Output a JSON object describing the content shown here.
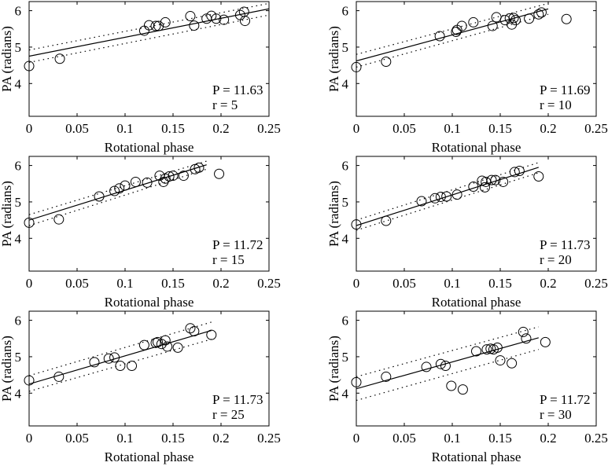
{
  "figure": {
    "background": "#ffffff",
    "ink": "#000000"
  },
  "chart_data": [
    {
      "type": "scatter",
      "xlabel": "Rotational phase",
      "ylabel": "PA (radians)",
      "xlim": [
        0,
        0.25
      ],
      "ylim": [
        3.1,
        6.25
      ],
      "xticks": [
        "0",
        "0.05",
        "0.1",
        "0.15",
        "0.2",
        "0.25"
      ],
      "yticks": [
        "4",
        "5",
        "6"
      ],
      "annotations": [
        "P = 11.63",
        "r = 5"
      ],
      "points": {
        "x": [
          0,
          0.032,
          0.12,
          0.125,
          0.132,
          0.135,
          0.142,
          0.168,
          0.172,
          0.185,
          0.19,
          0.195,
          0.203,
          0.22,
          0.224,
          0.225
        ],
        "y": [
          4.48,
          4.68,
          5.45,
          5.6,
          5.58,
          5.58,
          5.68,
          5.85,
          5.59,
          5.78,
          5.86,
          5.78,
          5.75,
          5.88,
          5.97,
          5.72
        ]
      },
      "fit_line": {
        "x": [
          0,
          0.25
        ],
        "y": [
          4.75,
          6.05
        ]
      },
      "confidence_lines": [
        {
          "x": [
            0,
            0.25
          ],
          "y": [
            4.92,
            6.2
          ]
        },
        {
          "x": [
            0,
            0.25
          ],
          "y": [
            4.58,
            5.88
          ]
        }
      ],
      "grid": false,
      "legend": "none"
    },
    {
      "type": "scatter",
      "xlabel": "Rotational phase",
      "ylabel": "PA (radians)",
      "xlim": [
        0,
        0.25
      ],
      "ylim": [
        3.1,
        6.25
      ],
      "xticks": [
        "0",
        "0.05",
        "0.1",
        "0.15",
        "0.2",
        "0.25"
      ],
      "yticks": [
        "4",
        "5",
        "6"
      ],
      "annotations": [
        "P = 11.69",
        "r = 10"
      ],
      "points": {
        "x": [
          0,
          0.031,
          0.087,
          0.104,
          0.105,
          0.11,
          0.122,
          0.142,
          0.146,
          0.155,
          0.16,
          0.162,
          0.164,
          0.166,
          0.18,
          0.19,
          0.193,
          0.219
        ],
        "y": [
          4.45,
          4.6,
          5.3,
          5.42,
          5.47,
          5.58,
          5.68,
          5.58,
          5.82,
          5.74,
          5.79,
          5.62,
          5.8,
          5.74,
          5.78,
          5.9,
          5.95,
          5.77
        ]
      },
      "fit_line": {
        "x": [
          0,
          0.2
        ],
        "y": [
          4.62,
          6.05
        ]
      },
      "confidence_lines": [
        {
          "x": [
            0,
            0.2
          ],
          "y": [
            4.8,
            6.2
          ]
        },
        {
          "x": [
            0,
            0.2
          ],
          "y": [
            4.45,
            5.9
          ]
        }
      ],
      "grid": false,
      "legend": "none"
    },
    {
      "type": "scatter",
      "xlabel": "Rotational phase",
      "ylabel": "PA (radians)",
      "xlim": [
        0,
        0.25
      ],
      "ylim": [
        3.1,
        6.25
      ],
      "xticks": [
        "0",
        "0.05",
        "0.1",
        "0.15",
        "0.2",
        "0.25"
      ],
      "yticks": [
        "4",
        "5",
        "6"
      ],
      "annotations": [
        "P = 11.72",
        "r = 15"
      ],
      "points": {
        "x": [
          0,
          0.031,
          0.073,
          0.089,
          0.094,
          0.1,
          0.111,
          0.123,
          0.136,
          0.14,
          0.142,
          0.146,
          0.15,
          0.161,
          0.173,
          0.177,
          0.198
        ],
        "y": [
          4.43,
          4.52,
          5.15,
          5.3,
          5.37,
          5.45,
          5.55,
          5.53,
          5.72,
          5.55,
          5.64,
          5.7,
          5.72,
          5.72,
          5.9,
          5.94,
          5.77
        ]
      },
      "fit_line": {
        "x": [
          0,
          0.185
        ],
        "y": [
          4.5,
          6.02
        ]
      },
      "confidence_lines": [
        {
          "x": [
            0,
            0.185
          ],
          "y": [
            4.65,
            6.12
          ]
        },
        {
          "x": [
            0,
            0.185
          ],
          "y": [
            4.35,
            5.9
          ]
        }
      ],
      "grid": false,
      "legend": "none"
    },
    {
      "type": "scatter",
      "xlabel": "Rotational phase",
      "ylabel": "PA (radians)",
      "xlim": [
        0,
        0.25
      ],
      "ylim": [
        3.1,
        6.25
      ],
      "xticks": [
        "0",
        "0.05",
        "0.1",
        "0.15",
        "0.2",
        "0.25"
      ],
      "yticks": [
        "4",
        "5",
        "6"
      ],
      "annotations": [
        "P = 11.73",
        "r = 20"
      ],
      "points": {
        "x": [
          0,
          0.031,
          0.068,
          0.082,
          0.088,
          0.094,
          0.105,
          0.122,
          0.131,
          0.134,
          0.135,
          0.141,
          0.145,
          0.153,
          0.165,
          0.17,
          0.19
        ],
        "y": [
          4.38,
          4.48,
          5.02,
          5.1,
          5.14,
          5.15,
          5.2,
          5.42,
          5.58,
          5.4,
          5.55,
          5.6,
          5.6,
          5.55,
          5.82,
          5.85,
          5.7
        ]
      },
      "fit_line": {
        "x": [
          0,
          0.19
        ],
        "y": [
          4.35,
          5.95
        ]
      },
      "confidence_lines": [
        {
          "x": [
            0,
            0.19
          ],
          "y": [
            4.5,
            6.08
          ]
        },
        {
          "x": [
            0,
            0.19
          ],
          "y": [
            4.22,
            5.8
          ]
        }
      ],
      "grid": false,
      "legend": "none"
    },
    {
      "type": "scatter",
      "xlabel": "Rotational phase",
      "ylabel": "PA (radians)",
      "xlim": [
        0,
        0.25
      ],
      "ylim": [
        3.1,
        6.25
      ],
      "xticks": [
        "0",
        "0.05",
        "0.1",
        "0.15",
        "0.2",
        "0.25"
      ],
      "yticks": [
        "4",
        "5",
        "6"
      ],
      "annotations": [
        "P = 11.73",
        "r = 25"
      ],
      "points": {
        "x": [
          0,
          0.031,
          0.068,
          0.083,
          0.089,
          0.095,
          0.107,
          0.12,
          0.132,
          0.134,
          0.138,
          0.142,
          0.144,
          0.155,
          0.168,
          0.172,
          0.19
        ],
        "y": [
          4.35,
          4.45,
          4.85,
          4.95,
          4.98,
          4.75,
          4.75,
          5.32,
          5.38,
          5.4,
          5.35,
          5.45,
          5.28,
          5.25,
          5.78,
          5.7,
          5.6
        ]
      },
      "fit_line": {
        "x": [
          0,
          0.19
        ],
        "y": [
          4.25,
          5.72
        ]
      },
      "confidence_lines": [
        {
          "x": [
            0,
            0.19
          ],
          "y": [
            4.48,
            5.95
          ]
        },
        {
          "x": [
            0,
            0.19
          ],
          "y": [
            4.05,
            5.48
          ]
        }
      ],
      "grid": false,
      "legend": "none"
    },
    {
      "type": "scatter",
      "xlabel": "Rotational phase",
      "ylabel": "PA (radians)",
      "xlim": [
        0,
        0.25
      ],
      "ylim": [
        3.1,
        6.25
      ],
      "xticks": [
        "0",
        "0.05",
        "0.1",
        "0.15",
        "0.2",
        "0.25"
      ],
      "yticks": [
        "4",
        "5",
        "6"
      ],
      "annotations": [
        "P = 11.72",
        "r = 30"
      ],
      "points": {
        "x": [
          0,
          0.031,
          0.073,
          0.088,
          0.093,
          0.099,
          0.111,
          0.125,
          0.136,
          0.14,
          0.143,
          0.147,
          0.15,
          0.162,
          0.174,
          0.177,
          0.197
        ],
        "y": [
          4.3,
          4.45,
          4.72,
          4.8,
          4.75,
          4.2,
          4.1,
          5.15,
          5.2,
          5.22,
          5.2,
          5.25,
          4.9,
          4.82,
          5.68,
          5.5,
          5.4
        ]
      },
      "fit_line": {
        "x": [
          0,
          0.19
        ],
        "y": [
          4.12,
          5.52
        ]
      },
      "confidence_lines": [
        {
          "x": [
            0,
            0.19
          ],
          "y": [
            4.45,
            5.82
          ]
        },
        {
          "x": [
            0,
            0.19
          ],
          "y": [
            3.8,
            5.2
          ]
        }
      ],
      "grid": false,
      "legend": "none"
    }
  ]
}
